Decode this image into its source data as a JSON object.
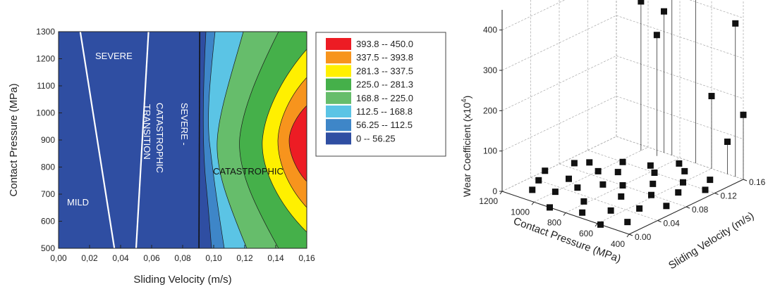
{
  "chart_data": [
    {
      "type": "contour",
      "xlabel": "Sliding Velocity (m/s)",
      "ylabel": "Contact Pressure (MPa)",
      "xlim": [
        0,
        0.16
      ],
      "ylim": [
        500,
        1300
      ],
      "x_ticks": [
        "0,00",
        "0,02",
        "0,04",
        "0,06",
        "0,08",
        "0,10",
        "0,12",
        "0,14",
        "0,16"
      ],
      "y_ticks": [
        "500",
        "600",
        "700",
        "800",
        "900",
        "1000",
        "1100",
        "1200",
        "1300"
      ],
      "levels": [
        {
          "range": "0 -- 56.25",
          "color": "#2f4ea2"
        },
        {
          "range": "56.25 -- 112.5",
          "color": "#3e86c8"
        },
        {
          "range": "112.5 -- 168.8",
          "color": "#5bc4e5"
        },
        {
          "range": "168.8 -- 225.0",
          "color": "#66bd6b"
        },
        {
          "range": "225.0 -- 281.3",
          "color": "#45b04a"
        },
        {
          "range": "281.3 -- 337.5",
          "color": "#fff000"
        },
        {
          "range": "337.5 -- 393.8",
          "color": "#f7941d"
        },
        {
          "range": "393.8 -- 450.0",
          "color": "#ed1c24"
        }
      ],
      "regions": [
        "MILD",
        "SEVERE",
        "TRANSITION",
        "CATASTROPHIC",
        "SEVERE -",
        "CATASTROPHIC"
      ],
      "boundaries": {
        "mild_severe": [
          [
            0.014,
            1300
          ],
          [
            0.036,
            500
          ]
        ],
        "severe_transition": [
          [
            0.058,
            1300
          ],
          [
            0.05,
            500
          ]
        ],
        "transition_catastrophic": [
          [
            0.091,
            1300
          ],
          [
            0.0905,
            500
          ]
        ]
      }
    },
    {
      "type": "scatter3d",
      "xlabel": "Contact Pressure (MPa)",
      "ylabel": "Sliding Velocity (m/s)",
      "zlabel": "Wear Coefficient (x10",
      "zlabel_exp": "4",
      "zlabel_close": ")",
      "x_ticks": [
        "1200",
        "1000",
        "800",
        "600",
        "400"
      ],
      "y_ticks": [
        "0.00",
        "0.04",
        "0.08",
        "0.12",
        "0.16"
      ],
      "z_ticks": [
        "0",
        "100",
        "200",
        "300",
        "400"
      ],
      "xlim": [
        400,
        1200
      ],
      "ylim": [
        0,
        0.16
      ],
      "zlim": [
        0,
        450
      ],
      "points": [
        {
          "p": 1200,
          "v": 0.06,
          "w": 0
        },
        {
          "p": 1150,
          "v": 0.04,
          "w": 0
        },
        {
          "p": 1150,
          "v": 0.09,
          "w": 0
        },
        {
          "p": 1100,
          "v": 0.02,
          "w": 0
        },
        {
          "p": 1100,
          "v": 0.1,
          "w": 0
        },
        {
          "p": 1050,
          "v": 0.06,
          "w": 0
        },
        {
          "p": 1000,
          "v": 0.03,
          "w": 0
        },
        {
          "p": 1000,
          "v": 0.09,
          "w": 0
        },
        {
          "p": 980,
          "v": 0.12,
          "w": 0
        },
        {
          "p": 950,
          "v": 0.05,
          "w": 0
        },
        {
          "p": 920,
          "v": 0.1,
          "w": 0
        },
        {
          "p": 900,
          "v": 0.0,
          "w": 0
        },
        {
          "p": 880,
          "v": 0.07,
          "w": 0
        },
        {
          "p": 850,
          "v": 0.13,
          "w": 0
        },
        {
          "p": 820,
          "v": 0.03,
          "w": 0
        },
        {
          "p": 800,
          "v": 0.08,
          "w": 0
        },
        {
          "p": 780,
          "v": 0.12,
          "w": 0
        },
        {
          "p": 760,
          "v": 0.15,
          "w": 0
        },
        {
          "p": 740,
          "v": 0.01,
          "w": 0
        },
        {
          "p": 720,
          "v": 0.06,
          "w": 0
        },
        {
          "p": 700,
          "v": 0.1,
          "w": 0
        },
        {
          "p": 680,
          "v": 0.14,
          "w": 0
        },
        {
          "p": 650,
          "v": 0.03,
          "w": 0
        },
        {
          "p": 620,
          "v": 0.08,
          "w": 0
        },
        {
          "p": 600,
          "v": 0.12,
          "w": 0
        },
        {
          "p": 580,
          "v": 0.0,
          "w": 0
        },
        {
          "p": 560,
          "v": 0.05,
          "w": 0
        },
        {
          "p": 540,
          "v": 0.1,
          "w": 0
        },
        {
          "p": 520,
          "v": 0.14,
          "w": 0
        },
        {
          "p": 500,
          "v": 0.02,
          "w": 0
        },
        {
          "p": 480,
          "v": 0.07,
          "w": 0
        },
        {
          "p": 460,
          "v": 0.12,
          "w": 0
        },
        {
          "p": 1000,
          "v": 0.15,
          "w": 370
        },
        {
          "p": 900,
          "v": 0.16,
          "w": 350
        },
        {
          "p": 900,
          "v": 0.15,
          "w": 300
        },
        {
          "p": 850,
          "v": 0.16,
          "w": 440
        },
        {
          "p": 700,
          "v": 0.16,
          "w": 460
        },
        {
          "p": 600,
          "v": 0.16,
          "w": 180
        },
        {
          "p": 500,
          "v": 0.16,
          "w": 80
        },
        {
          "p": 450,
          "v": 0.16,
          "w": 380
        },
        {
          "p": 400,
          "v": 0.16,
          "w": 160
        }
      ]
    }
  ]
}
